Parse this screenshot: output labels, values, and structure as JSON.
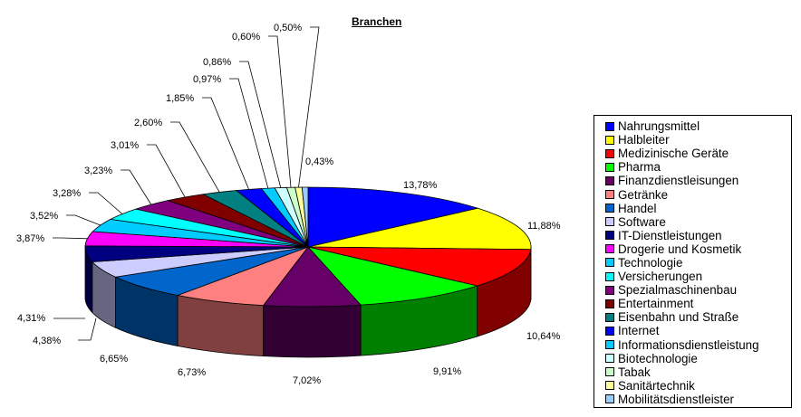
{
  "chart_data": {
    "type": "pie",
    "title": "Branchen",
    "legend_position": "right",
    "slices": [
      {
        "name": "Nahrungsmittel",
        "label": "13,78%",
        "value": 13.78,
        "color": "#0000ff"
      },
      {
        "name": "Halbleiter",
        "label": "11,88%",
        "value": 11.88,
        "color": "#ffff00"
      },
      {
        "name": "Medizinische Geräte",
        "label": "10,64%",
        "value": 10.64,
        "color": "#ff0000"
      },
      {
        "name": "Pharma",
        "label": "9,91%",
        "value": 9.91,
        "color": "#00ff00"
      },
      {
        "name": "Finanzdienstleisungen",
        "label": "7,02%",
        "value": 7.02,
        "color": "#660066"
      },
      {
        "name": "Getränke",
        "label": "6,73%",
        "value": 6.73,
        "color": "#ff8080"
      },
      {
        "name": "Handel",
        "label": "6,65%",
        "value": 6.65,
        "color": "#0066cc"
      },
      {
        "name": "Software",
        "label": "4,38%",
        "value": 4.38,
        "color": "#ccccff"
      },
      {
        "name": "IT-Dienstleistungen",
        "label": "4,31%",
        "value": 4.31,
        "color": "#000080"
      },
      {
        "name": "Drogerie und Kosmetik",
        "label": "3,87%",
        "value": 3.87,
        "color": "#ff00ff"
      },
      {
        "name": "Technologie",
        "label": "3,52%",
        "value": 3.52,
        "color": "#00ccff"
      },
      {
        "name": "Versicherungen",
        "label": "3,28%",
        "value": 3.28,
        "color": "#00ffff"
      },
      {
        "name": "Spezialmaschinenbau",
        "label": "3,23%",
        "value": 3.23,
        "color": "#800080"
      },
      {
        "name": "Entertainment",
        "label": "3,01%",
        "value": 3.01,
        "color": "#800000"
      },
      {
        "name": "Eisenbahn und Straße",
        "label": "2,60%",
        "value": 2.6,
        "color": "#008080"
      },
      {
        "name": "Internet",
        "label": "1,85%",
        "value": 1.85,
        "color": "#0000ff"
      },
      {
        "name": "Informationsdienstleistung",
        "label": "0,97%",
        "value": 0.97,
        "color": "#00ccff"
      },
      {
        "name": "Biotechnologie",
        "label": "0,86%",
        "value": 0.86,
        "color": "#ccffff"
      },
      {
        "name": "Tabak",
        "label": "0,60%",
        "value": 0.6,
        "color": "#ccffcc"
      },
      {
        "name": "Sanitärtechnik",
        "label": "0,50%",
        "value": 0.5,
        "color": "#ffff99"
      },
      {
        "name": "Mobilitätsdienstleister",
        "label": "0,43%",
        "value": 0.43,
        "color": "#99ccff"
      }
    ]
  }
}
